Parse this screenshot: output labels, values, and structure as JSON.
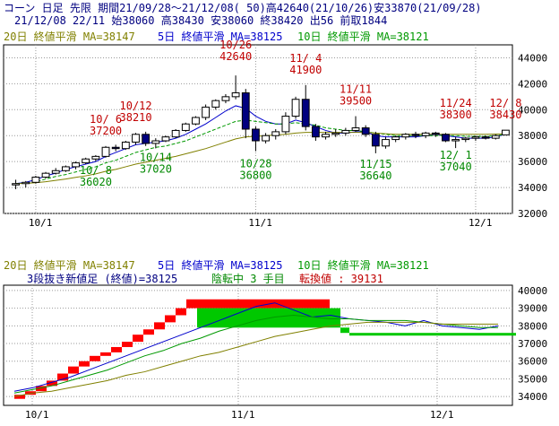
{
  "header": {
    "line1": "コーン 日足 先限 期間21/09/28～21/12/08( 50)高42640(21/10/26)安33870(21/09/28)",
    "line2": "21/12/08 22/11 始38060 高38430 安38060 終38420 出56 前取1844"
  },
  "legend": {
    "ma20": "20日 終値平滑 MA=38147",
    "ma5": "5日 終値平滑 MA=38125",
    "ma10": "10日 終値平滑 MA=38121"
  },
  "lower_info": {
    "title": "3段抜き新値足 (終値)=38125",
    "status": "陰転中 3 手目",
    "reversal": "転換値 : 39131"
  },
  "colors": {
    "up": "#ffffff",
    "down": "#00007f",
    "ma5": "#0000cc",
    "ma10": "#009900",
    "ma20": "#808000",
    "label_up": "#c00000",
    "label_down": "#008800",
    "brick_up": "#ff0000",
    "brick_down": "#00c800"
  },
  "chart_data": [
    {
      "type": "candlestick",
      "x_labels": [
        "10/1",
        "11/1",
        "12/1"
      ],
      "y_ticks": [
        32000,
        34000,
        36000,
        38000,
        40000,
        42000,
        44000
      ],
      "ylim": [
        32000,
        45000
      ],
      "annotations": [
        {
          "text": "10/ 6\n37200",
          "kind": "high"
        },
        {
          "text": "10/12\n38210",
          "kind": "high"
        },
        {
          "text": "10/26\n42640",
          "kind": "high"
        },
        {
          "text": "11/ 4\n41900",
          "kind": "high"
        },
        {
          "text": "11/11\n39500",
          "kind": "high"
        },
        {
          "text": "11/24\n38300",
          "kind": "high"
        },
        {
          "text": "12/ 8\n38430",
          "kind": "high"
        },
        {
          "text": "10/ 8\n36020",
          "kind": "low"
        },
        {
          "text": "10/14\n37020",
          "kind": "low"
        },
        {
          "text": "10/28\n36800",
          "kind": "low"
        },
        {
          "text": "11/15\n36640",
          "kind": "low"
        },
        {
          "text": "12/ 1\n37040",
          "kind": "low"
        }
      ],
      "candles": [
        [
          34200,
          34600,
          33870,
          34300
        ],
        [
          34300,
          34500,
          34000,
          34400
        ],
        [
          34400,
          34900,
          34300,
          34800
        ],
        [
          34800,
          35200,
          34700,
          35100
        ],
        [
          35100,
          35500,
          35000,
          35300
        ],
        [
          35300,
          35700,
          35200,
          35600
        ],
        [
          35600,
          36000,
          35400,
          35900
        ],
        [
          35900,
          36300,
          35800,
          36200
        ],
        [
          36200,
          36500,
          36020,
          36400
        ],
        [
          36400,
          37200,
          36300,
          37100
        ],
        [
          37100,
          37300,
          36800,
          37000
        ],
        [
          37000,
          37600,
          36900,
          37500
        ],
        [
          37500,
          38210,
          37300,
          38100
        ],
        [
          38100,
          38300,
          37200,
          37400
        ],
        [
          37400,
          37800,
          37020,
          37600
        ],
        [
          37600,
          38000,
          37500,
          37900
        ],
        [
          37900,
          38500,
          37800,
          38400
        ],
        [
          38400,
          39000,
          38300,
          38900
        ],
        [
          38900,
          39500,
          38800,
          39400
        ],
        [
          39400,
          40400,
          39200,
          40200
        ],
        [
          40200,
          40800,
          40000,
          40700
        ],
        [
          40700,
          41200,
          40500,
          41000
        ],
        [
          41000,
          42640,
          40800,
          41300
        ],
        [
          41300,
          41600,
          37800,
          38500
        ],
        [
          38500,
          38700,
          36800,
          37600
        ],
        [
          37600,
          38200,
          37400,
          38000
        ],
        [
          38000,
          38500,
          37700,
          38300
        ],
        [
          38300,
          39800,
          38100,
          39500
        ],
        [
          39500,
          41000,
          39300,
          40800
        ],
        [
          40800,
          41900,
          38400,
          38700
        ],
        [
          38700,
          38900,
          37600,
          37900
        ],
        [
          37900,
          38300,
          37700,
          38100
        ],
        [
          38100,
          38500,
          37900,
          38200
        ],
        [
          38200,
          38600,
          38000,
          38400
        ],
        [
          38400,
          39500,
          38300,
          38600
        ],
        [
          38600,
          38800,
          37900,
          38100
        ],
        [
          38100,
          38300,
          36640,
          37200
        ],
        [
          37200,
          37900,
          37000,
          37700
        ],
        [
          37700,
          38000,
          37500,
          37900
        ],
        [
          37900,
          38200,
          37700,
          38100
        ],
        [
          38100,
          38300,
          37800,
          38000
        ],
        [
          38000,
          38300,
          37800,
          38200
        ],
        [
          38200,
          38300,
          37900,
          38100
        ],
        [
          38100,
          38200,
          37500,
          37600
        ],
        [
          37600,
          37900,
          37040,
          37700
        ],
        [
          37700,
          37900,
          37500,
          37800
        ],
        [
          37800,
          38000,
          37600,
          37900
        ],
        [
          37900,
          38000,
          37700,
          37800
        ],
        [
          37800,
          38100,
          37700,
          38000
        ],
        [
          38060,
          38430,
          38060,
          38420
        ]
      ],
      "series": [
        {
          "name": "5日 終値平滑",
          "values": [
            34300,
            34400,
            34600,
            34900,
            35100,
            35400,
            35600,
            35800,
            36000,
            36400,
            36700,
            37000,
            37300,
            37400,
            37500,
            37600,
            37800,
            38100,
            38500,
            38900,
            39400,
            39900,
            40300,
            40100,
            39500,
            39100,
            38900,
            38900,
            39200,
            39000,
            38700,
            38400,
            38200,
            38200,
            38300,
            38300,
            38000,
            37900,
            37900,
            37900,
            37900,
            38000,
            38100,
            38000,
            37900,
            37800,
            37800,
            37800,
            37900,
            38125
          ]
        },
        {
          "name": "10日 終値平滑",
          "values": [
            34300,
            34350,
            34450,
            34650,
            34850,
            35000,
            35200,
            35400,
            35600,
            35900,
            36100,
            36400,
            36700,
            36900,
            37100,
            37200,
            37400,
            37600,
            37900,
            38200,
            38500,
            38800,
            39100,
            39200,
            39100,
            39000,
            38900,
            38900,
            39000,
            38900,
            38800,
            38600,
            38500,
            38400,
            38400,
            38300,
            38200,
            38100,
            38000,
            38000,
            38000,
            38000,
            38000,
            38000,
            38000,
            37950,
            37950,
            37950,
            38000,
            38121
          ]
        },
        {
          "name": "20日 終値平滑",
          "values": [
            34300,
            34320,
            34370,
            34450,
            34550,
            34650,
            34780,
            34900,
            35050,
            35250,
            35400,
            35600,
            35800,
            35950,
            36100,
            36250,
            36400,
            36600,
            36800,
            37000,
            37250,
            37500,
            37750,
            37900,
            37950,
            38000,
            38050,
            38100,
            38200,
            38250,
            38250,
            38250,
            38250,
            38250,
            38250,
            38250,
            38200,
            38150,
            38100,
            38100,
            38100,
            38100,
            38100,
            38100,
            38100,
            38100,
            38100,
            38100,
            38120,
            38147
          ]
        }
      ]
    },
    {
      "type": "three-line-break",
      "y_ticks": [
        34000,
        35000,
        36000,
        37000,
        38000,
        39000,
        40000
      ],
      "ylim": [
        33500,
        40300
      ],
      "bricks": [
        {
          "dir": "up",
          "lo": 33870,
          "hi": 34100
        },
        {
          "dir": "up",
          "lo": 34100,
          "hi": 34300
        },
        {
          "dir": "up",
          "lo": 34300,
          "hi": 34600
        },
        {
          "dir": "up",
          "lo": 34600,
          "hi": 34900
        },
        {
          "dir": "up",
          "lo": 34900,
          "hi": 35300
        },
        {
          "dir": "up",
          "lo": 35300,
          "hi": 35700
        },
        {
          "dir": "up",
          "lo": 35700,
          "hi": 36000
        },
        {
          "dir": "up",
          "lo": 36000,
          "hi": 36300
        },
        {
          "dir": "up",
          "lo": 36300,
          "hi": 36500
        },
        {
          "dir": "up",
          "lo": 36500,
          "hi": 36800
        },
        {
          "dir": "up",
          "lo": 36800,
          "hi": 37100
        },
        {
          "dir": "up",
          "lo": 37100,
          "hi": 37500
        },
        {
          "dir": "up",
          "lo": 37500,
          "hi": 37800
        },
        {
          "dir": "up",
          "lo": 37800,
          "hi": 38200
        },
        {
          "dir": "up",
          "lo": 38200,
          "hi": 38600
        },
        {
          "dir": "up",
          "lo": 38600,
          "hi": 39000
        },
        {
          "dir": "up",
          "lo": 39000,
          "hi": 39500
        },
        {
          "dir": "down",
          "lo": 37900,
          "hi": 39000
        },
        {
          "dir": "down",
          "lo": 37600,
          "hi": 37900
        },
        {
          "dir": "down",
          "lo": 37500,
          "hi": 37600
        }
      ],
      "series": [
        {
          "name": "5日",
          "values": [
            34300,
            34500,
            34800,
            35100,
            35500,
            35900,
            36300,
            36700,
            37100,
            37500,
            37900,
            38300,
            38700,
            39100,
            39300,
            38900,
            38500,
            38600,
            38400,
            38300,
            38200,
            38000,
            38300,
            38000,
            37900,
            37800,
            38000
          ]
        },
        {
          "name": "10日",
          "values": [
            34200,
            34400,
            34600,
            34900,
            35200,
            35500,
            35900,
            36300,
            36600,
            37000,
            37300,
            37700,
            38000,
            38300,
            38500,
            38600,
            38500,
            38400,
            38400,
            38300,
            38300,
            38300,
            38200,
            38100,
            38000,
            37900,
            37900
          ]
        },
        {
          "name": "20日",
          "values": [
            34000,
            34200,
            34300,
            34500,
            34700,
            34900,
            35200,
            35400,
            35700,
            36000,
            36300,
            36500,
            36800,
            37100,
            37400,
            37600,
            37800,
            38000,
            38100,
            38200,
            38200,
            38200,
            38200,
            38100,
            38100,
            38100,
            38100
          ]
        }
      ]
    }
  ]
}
